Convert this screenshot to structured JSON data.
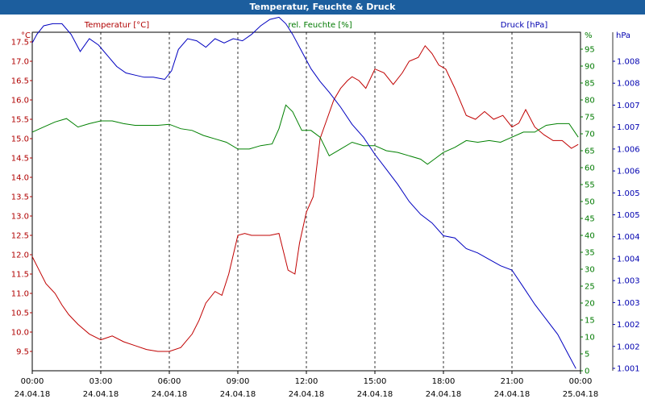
{
  "window": {
    "title": "Temperatur, Feuchte & Druck"
  },
  "chart_data": {
    "type": "line",
    "title": "Temperatur, Feuchte & Druck",
    "x_time_labels": [
      "00:00",
      "03:00",
      "06:00",
      "09:00",
      "12:00",
      "15:00",
      "18:00",
      "21:00",
      "00:00"
    ],
    "x_date_labels": [
      "24.04.18",
      "24.04.18",
      "24.04.18",
      "24.04.18",
      "24.04.18",
      "24.04.18",
      "24.04.18",
      "24.04.18",
      "25.04.18"
    ],
    "x_hours": [
      0,
      3,
      6,
      9,
      12,
      15,
      18,
      21,
      24
    ],
    "grid": true,
    "axes": {
      "temperature": {
        "unit": "°C",
        "range": [
          9.0,
          17.75
        ],
        "ticks": [
          "9.5",
          "10.0",
          "10.5",
          "11.0",
          "11.5",
          "12.0",
          "12.5",
          "13.0",
          "13.5",
          "14.0",
          "14.5",
          "15.0",
          "15.5",
          "16.0",
          "16.5",
          "17.0",
          "17.5"
        ],
        "color": "#b00000"
      },
      "humidity": {
        "unit": "%",
        "range": [
          0,
          100
        ],
        "ticks": [
          "0",
          "5",
          "10",
          "15",
          "20",
          "25",
          "30",
          "35",
          "40",
          "45",
          "50",
          "55",
          "60",
          "65",
          "70",
          "75",
          "80",
          "85",
          "90",
          "95"
        ],
        "color": "#007a00"
      },
      "pressure": {
        "unit": "hPa",
        "range": [
          1000.75,
          1008.65
        ],
        "ticks": [
          "1.001",
          "1.002",
          "1.002",
          "1.003",
          "1.003",
          "1.004",
          "1.004",
          "1.005",
          "1.005",
          "1.006",
          "1.006",
          "1.007",
          "1.007",
          "1.008",
          "1.008"
        ],
        "color": "#0000b0"
      }
    },
    "series": [
      {
        "name": "Temperatur [°C]",
        "axis": "temperature",
        "color": "#c00000",
        "hours": [
          0,
          0.3,
          0.6,
          1,
          1.3,
          1.6,
          2,
          2.5,
          3,
          3.5,
          4,
          4.5,
          5,
          5.5,
          6,
          6.5,
          7,
          7.3,
          7.6,
          8,
          8.3,
          8.6,
          9,
          9.3,
          9.6,
          10,
          10.4,
          10.8,
          11.2,
          11.5,
          11.7,
          12,
          12.3,
          12.6,
          12.9,
          13.2,
          13.5,
          13.8,
          14,
          14.3,
          14.6,
          15,
          15.4,
          15.8,
          16.2,
          16.5,
          16.9,
          17.2,
          17.5,
          17.8,
          18.1,
          18.5,
          19,
          19.4,
          19.8,
          20.2,
          20.6,
          21,
          21.3,
          21.6,
          22,
          22.4,
          22.8,
          23.2,
          23.6,
          23.9
        ],
        "values": [
          11.95,
          11.6,
          11.25,
          11.0,
          10.7,
          10.45,
          10.2,
          9.95,
          9.8,
          9.9,
          9.75,
          9.65,
          9.55,
          9.5,
          9.5,
          9.6,
          9.95,
          10.3,
          10.75,
          11.05,
          10.95,
          11.5,
          12.5,
          12.55,
          12.5,
          12.5,
          12.5,
          12.55,
          11.6,
          11.5,
          12.3,
          13.1,
          13.5,
          15.0,
          15.5,
          16.0,
          16.3,
          16.5,
          16.6,
          16.5,
          16.3,
          16.8,
          16.7,
          16.4,
          16.7,
          17.0,
          17.1,
          17.4,
          17.2,
          16.9,
          16.8,
          16.3,
          15.6,
          15.5,
          15.7,
          15.5,
          15.6,
          15.3,
          15.4,
          15.75,
          15.3,
          15.1,
          14.95,
          14.95,
          14.75,
          14.85
        ]
      },
      {
        "name": "rel. Feuchte [%]",
        "axis": "humidity",
        "color": "#008000",
        "hours": [
          0,
          0.5,
          1,
          1.5,
          2,
          2.5,
          3,
          3.5,
          4,
          4.5,
          5,
          5.5,
          6,
          6.5,
          7,
          7.5,
          8,
          8.5,
          9,
          9.5,
          10,
          10.5,
          10.8,
          11.1,
          11.4,
          11.8,
          12.2,
          12.6,
          13,
          13.5,
          14,
          14.5,
          15,
          15.5,
          16,
          16.5,
          17,
          17.3,
          17.6,
          18,
          18.5,
          19,
          19.5,
          20,
          20.5,
          21,
          21.5,
          22,
          22.5,
          23,
          23.5,
          23.9
        ],
        "values": [
          70.5,
          72,
          73.5,
          74.5,
          72,
          73,
          73.8,
          73.8,
          73,
          72.5,
          72.5,
          72.5,
          72.8,
          71.5,
          71,
          69.5,
          68.5,
          67.5,
          65.5,
          65.5,
          66.5,
          67,
          71.5,
          78.5,
          76.5,
          71,
          71,
          69,
          63.5,
          65.5,
          67.5,
          66.5,
          66.5,
          65,
          64.5,
          63.5,
          62.5,
          61,
          62.5,
          64.5,
          66,
          68,
          67.5,
          68,
          67.5,
          69,
          70.5,
          70.5,
          72.5,
          73,
          73,
          69
        ]
      },
      {
        "name": "Druck [hPa]",
        "axis": "pressure",
        "color": "#0000c0",
        "hours": [
          0,
          0.2,
          0.5,
          0.9,
          1.3,
          1.7,
          2.1,
          2.5,
          2.9,
          3.3,
          3.7,
          4.1,
          4.5,
          4.9,
          5.3,
          5.8,
          6.1,
          6.4,
          6.8,
          7.2,
          7.6,
          8,
          8.4,
          8.8,
          9.2,
          9.6,
          10,
          10.4,
          10.8,
          11.1,
          11.4,
          11.8,
          12.2,
          12.6,
          13,
          13.5,
          14,
          14.5,
          15,
          15.5,
          16,
          16.5,
          17,
          17.5,
          18,
          18.5,
          19,
          19.5,
          20,
          20.5,
          21,
          21.5,
          22,
          22.5,
          23,
          23.5,
          23.8
        ],
        "values": [
          1008.4,
          1008.6,
          1008.8,
          1008.85,
          1008.85,
          1008.6,
          1008.2,
          1008.5,
          1008.35,
          1008.1,
          1007.85,
          1007.7,
          1007.65,
          1007.6,
          1007.6,
          1007.55,
          1007.75,
          1008.25,
          1008.5,
          1008.45,
          1008.3,
          1008.5,
          1008.4,
          1008.5,
          1008.45,
          1008.6,
          1008.8,
          1008.95,
          1009.0,
          1008.85,
          1008.6,
          1008.2,
          1007.8,
          1007.5,
          1007.25,
          1006.9,
          1006.5,
          1006.2,
          1005.8,
          1005.45,
          1005.1,
          1004.7,
          1004.4,
          1004.2,
          1003.9,
          1003.85,
          1003.6,
          1003.5,
          1003.35,
          1003.2,
          1003.1,
          1002.7,
          1002.3,
          1001.95,
          1001.6,
          1001.1,
          1000.8
        ]
      }
    ]
  }
}
